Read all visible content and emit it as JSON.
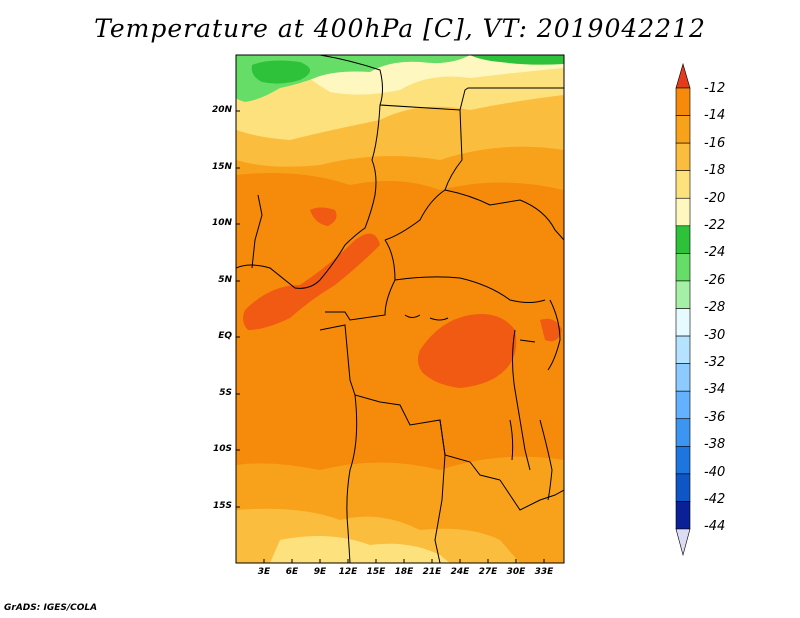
{
  "title": "Temperature at 400hPa [C], VT: 2019042212",
  "credit": "GrADS: IGES/COLA",
  "map": {
    "y_axis_labels": [
      "20N",
      "15N",
      "10N",
      "5N",
      "EQ",
      "5S",
      "10S",
      "15S"
    ],
    "x_axis_labels": [
      "3E",
      "6E",
      "9E",
      "12E",
      "15E",
      "18E",
      "21E",
      "24E",
      "27E",
      "30E",
      "33E"
    ]
  },
  "colorbar": {
    "levels": [
      "-12",
      "-14",
      "-16",
      "-18",
      "-20",
      "-22",
      "-24",
      "-26",
      "-28",
      "-30",
      "-32",
      "-34",
      "-36",
      "-38",
      "-40",
      "-42",
      "-44"
    ],
    "colors": [
      "#f05a12",
      "#f58a0b",
      "#f8a21c",
      "#fbbd3e",
      "#fde17d",
      "#fff7c0",
      "#2ec23a",
      "#66dd66",
      "#a6efa6",
      "#e6fbff",
      "#b4e2ff",
      "#8ccaff",
      "#64b1ff",
      "#3d95f2",
      "#1d76e0",
      "#0e55c6",
      "#0a2096"
    ],
    "tip_top_color": "#e23c1c",
    "tip_bottom_color": "#dcdcf5"
  }
}
